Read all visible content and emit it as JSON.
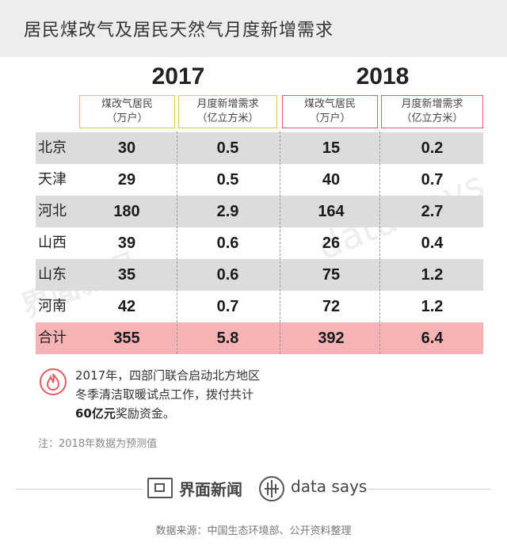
{
  "title": "居民煤改气及居民天然气月度新增需求",
  "years": [
    "2017",
    "2018"
  ],
  "column_headers": [
    {
      "line1": "煤改气居民",
      "line2": "（万户）"
    },
    {
      "line1": "月度新增需求",
      "line2": "（亿立方米）"
    },
    {
      "line1": "煤改气居民",
      "line2": "（万户）"
    },
    {
      "line1": "月度新增需求",
      "line2": "（亿立方米）"
    }
  ],
  "chart_data": {
    "type": "table",
    "title": "居民煤改气及居民天然气月度新增需求",
    "columns": [
      "2017 煤改气居民（万户）",
      "2017 月度新增需求（亿立方米）",
      "2018 煤改气居民（万户）",
      "2018 月度新增需求（亿立方米）"
    ],
    "rows": [
      {
        "region": "北京",
        "values": [
          "30",
          "0.5",
          "15",
          "0.2"
        ]
      },
      {
        "region": "天津",
        "values": [
          "29",
          "0.5",
          "40",
          "0.7"
        ]
      },
      {
        "region": "河北",
        "values": [
          "180",
          "2.9",
          "164",
          "2.7"
        ]
      },
      {
        "region": "山西",
        "values": [
          "39",
          "0.6",
          "26",
          "0.4"
        ]
      },
      {
        "region": "山东",
        "values": [
          "35",
          "0.6",
          "75",
          "1.2"
        ]
      },
      {
        "region": "河南",
        "values": [
          "42",
          "0.7",
          "72",
          "1.2"
        ]
      },
      {
        "region": "合计",
        "values": [
          "355",
          "5.8",
          "392",
          "6.4"
        ]
      }
    ]
  },
  "note": {
    "line1": "2017年，四部门联合启动北方地区",
    "line2": "冬季清洁取暖试点工作，拨付共计",
    "line3_bold": "60亿元",
    "line3_rest": "奖励资金。"
  },
  "footnote": "注：2018年数据为预测值",
  "brand": {
    "cn": "界面新闻",
    "en": "data says"
  },
  "watermark": {
    "cn": "界面新闻",
    "en": "data says"
  },
  "source": "数据来源：中国生态环境部、公开资料整理",
  "colors": {
    "yellow": "#e7c84b",
    "red": "#e35b62",
    "row_gray": "#dcdcdc",
    "row_total": "#f6b3b5"
  }
}
